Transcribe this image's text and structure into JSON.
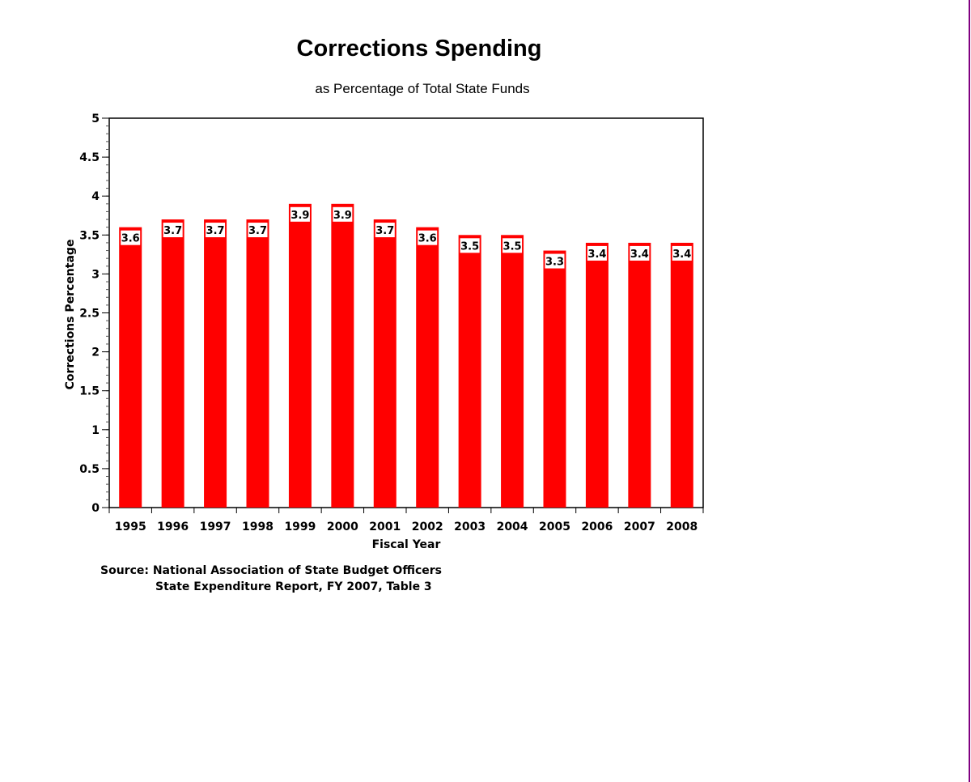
{
  "chart_data": {
    "type": "bar",
    "title": "Corrections Spending",
    "subtitle": "as Percentage of Total State Funds",
    "xlabel": "Fiscal Year",
    "ylabel": "Corrections Percentage",
    "categories": [
      "1995",
      "1996",
      "1997",
      "1998",
      "1999",
      "2000",
      "2001",
      "2002",
      "2003",
      "2004",
      "2005",
      "2006",
      "2007",
      "2008"
    ],
    "values": [
      3.6,
      3.7,
      3.7,
      3.7,
      3.9,
      3.9,
      3.7,
      3.6,
      3.5,
      3.5,
      3.3,
      3.4,
      3.4,
      3.4
    ],
    "ylim": [
      0,
      5
    ],
    "yticks": [
      "0",
      "0.5",
      "1",
      "1.5",
      "2",
      "2.5",
      "3",
      "3.5",
      "4",
      "4.5",
      "5"
    ],
    "grid": false,
    "bar_color": "#ff0000",
    "data_labels": true
  },
  "source": {
    "line1": "Source: National Association of State Budget Officers",
    "line2": "State Expenditure Report, FY 2007, Table 3"
  },
  "frame_color": "#800080"
}
